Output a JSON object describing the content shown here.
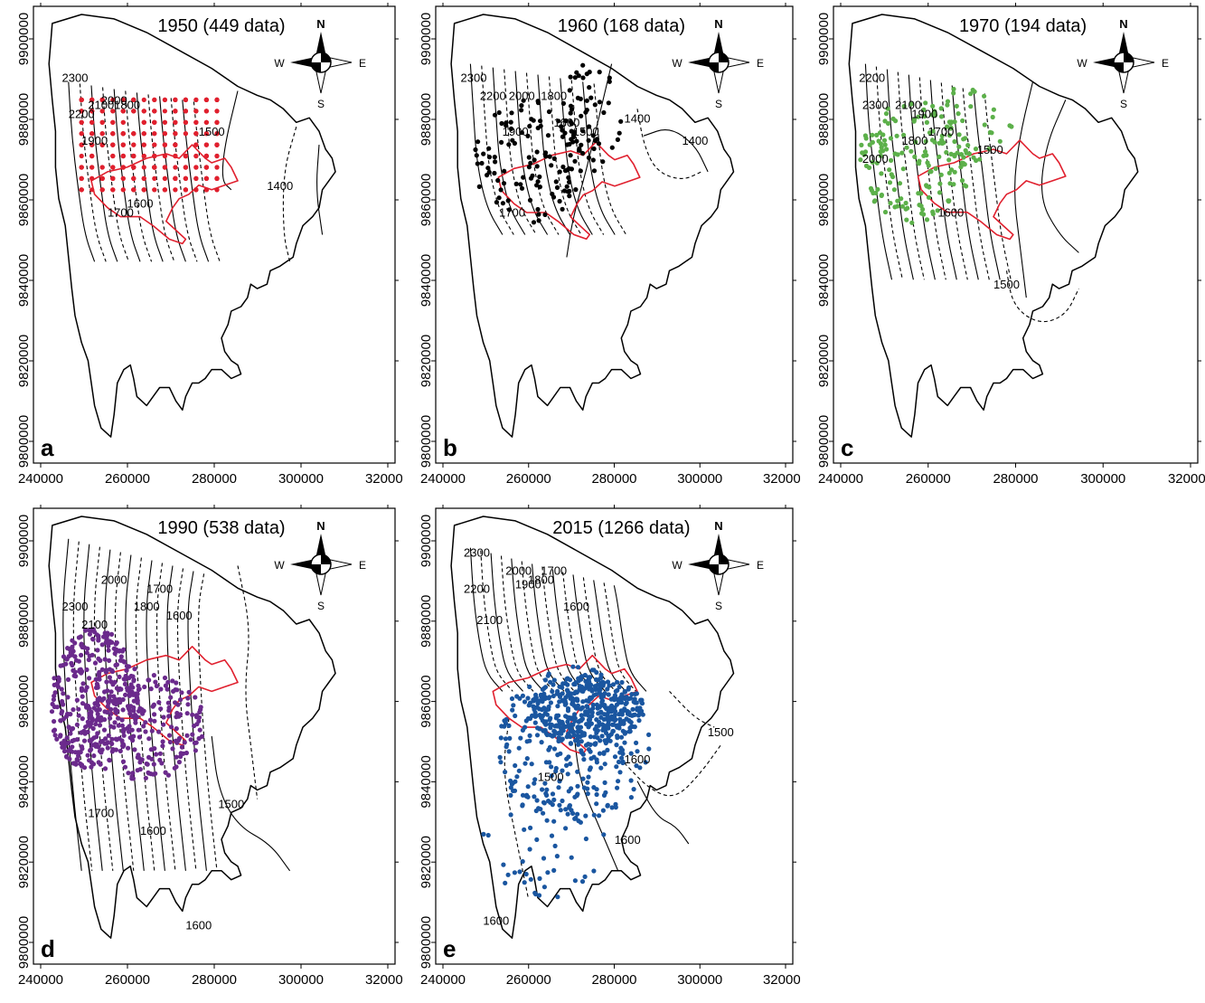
{
  "panels": [
    {
      "letter": "a",
      "title": "1950 (449 data)",
      "point_color": "#e0202e",
      "point_count": 449,
      "xticks": [
        "240000",
        "260000",
        "280000",
        "300000",
        "320000"
      ],
      "yticks": [
        "9800000",
        "9820000",
        "9840000",
        "9860000",
        "9880000",
        "9900000"
      ],
      "contour_labels": [
        "2300",
        "2200",
        "2100",
        "2000",
        "1900",
        "1800",
        "1700",
        "1600",
        "1500",
        "1400"
      ]
    },
    {
      "letter": "b",
      "title": "1960 (168 data)",
      "point_color": "#000000",
      "point_count": 168,
      "xticks": [
        "240000",
        "260000",
        "280000",
        "300000",
        "320000"
      ],
      "yticks": [
        "9800000",
        "9820000",
        "9840000",
        "9860000",
        "9880000",
        "9900000"
      ],
      "contour_labels": [
        "2300",
        "2200",
        "2000",
        "1900",
        "1800",
        "1700",
        "1600",
        "1500",
        "1400",
        "1400"
      ]
    },
    {
      "letter": "c",
      "title": "1970 (194 data)",
      "point_color": "#5cb04a",
      "point_count": 194,
      "xticks": [
        "240000",
        "260000",
        "280000",
        "300000",
        "320000"
      ],
      "yticks": [
        "9800000",
        "9820000",
        "9840000",
        "9860000",
        "9880000",
        "9900000"
      ],
      "contour_labels": [
        "2200",
        "2300",
        "2100",
        "2000",
        "1900",
        "1800",
        "1700",
        "1600",
        "1500",
        "1500"
      ]
    },
    {
      "letter": "d",
      "title": "1990 (538 data)",
      "point_color": "#6b2a8c",
      "point_count": 538,
      "xticks": [
        "240000",
        "260000",
        "280000",
        "300000",
        "320000"
      ],
      "yticks": [
        "9800000",
        "9820000",
        "9840000",
        "9860000",
        "9880000",
        "9900000"
      ],
      "contour_labels": [
        "2300",
        "2000",
        "2100",
        "1800",
        "1700",
        "1600",
        "1500",
        "1700",
        "1600",
        "1600"
      ]
    },
    {
      "letter": "e",
      "title": "2015 (1266 data)",
      "point_color": "#1a56a0",
      "point_count": 1266,
      "xticks": [
        "240000",
        "260000",
        "280000",
        "300000",
        "320000"
      ],
      "yticks": [
        "9800000",
        "9820000",
        "9840000",
        "9860000",
        "9880000",
        "9900000"
      ],
      "contour_labels": [
        "2300",
        "2200",
        "2100",
        "2000",
        "1900",
        "1800",
        "1700",
        "1600",
        "1500",
        "1600",
        "1600",
        "1500",
        "1600"
      ]
    }
  ],
  "compass": {
    "n": "N",
    "s": "S",
    "e": "E",
    "w": "W"
  }
}
